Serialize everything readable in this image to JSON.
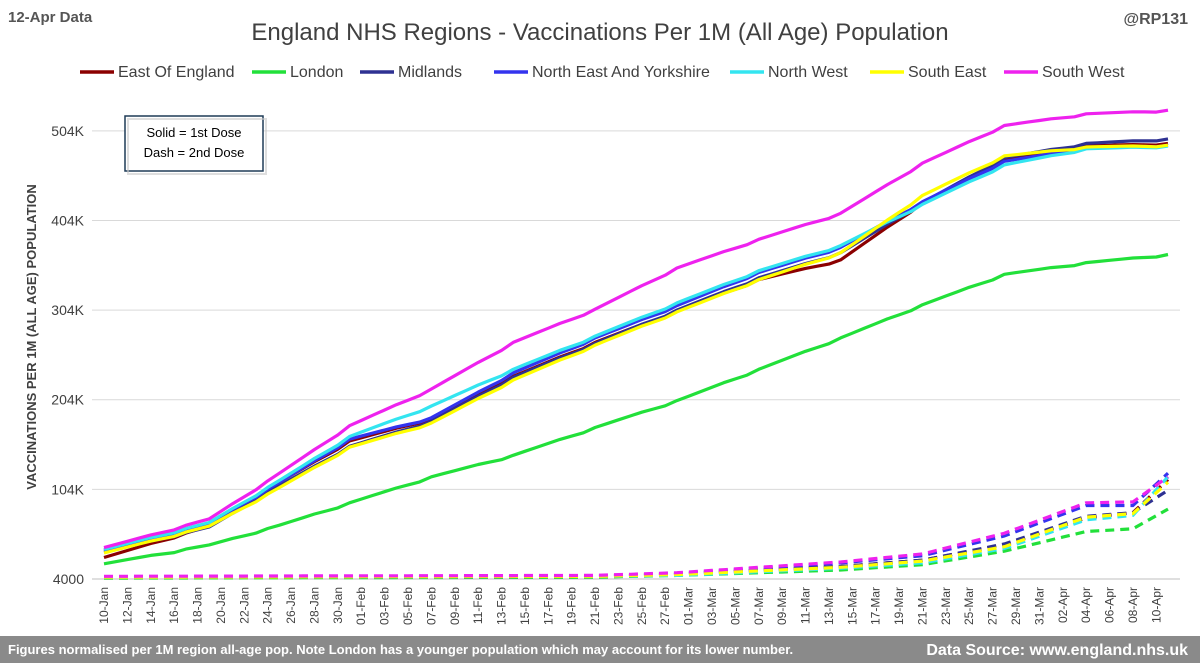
{
  "corner_label": "12-Apr Data",
  "handle": "@RP131",
  "chart_data": {
    "type": "line",
    "title": "England NHS Regions - Vaccinations Per 1M (All Age) Population",
    "ylabel": "VACCINATIONS PER 1M (ALL AGE) POPULATION",
    "xlabel": "",
    "ylim": [
      4000,
      544000
    ],
    "yticks": [
      4000,
      104000,
      204000,
      304000,
      404000,
      504000
    ],
    "ytick_labels": [
      "4000",
      "104K",
      "204K",
      "304K",
      "404K",
      "504K"
    ],
    "x_start": "10-Jan",
    "x_count": 92,
    "xtick_labels": [
      "10-Jan",
      "12-Jan",
      "14-Jan",
      "16-Jan",
      "18-Jan",
      "20-Jan",
      "22-Jan",
      "24-Jan",
      "26-Jan",
      "28-Jan",
      "30-Jan",
      "01-Feb",
      "03-Feb",
      "05-Feb",
      "07-Feb",
      "09-Feb",
      "11-Feb",
      "13-Feb",
      "15-Feb",
      "17-Feb",
      "19-Feb",
      "21-Feb",
      "23-Feb",
      "25-Feb",
      "27-Feb",
      "01-Mar",
      "03-Mar",
      "05-Mar",
      "07-Mar",
      "09-Mar",
      "11-Mar",
      "13-Mar",
      "15-Mar",
      "17-Mar",
      "19-Mar",
      "21-Mar",
      "23-Mar",
      "25-Mar",
      "27-Mar",
      "29-Mar",
      "31-Mar",
      "02-Apr",
      "04-Apr",
      "06-Apr",
      "08-Apr",
      "10-Apr"
    ],
    "legend_position": "top",
    "series": [
      {
        "name": "East Of England",
        "color": "#8B0000",
        "dose1": [
          [
            0,
            28000
          ],
          [
            9,
            63000
          ],
          [
            15,
            112000
          ],
          [
            21,
            158000
          ],
          [
            28,
            183000
          ],
          [
            35,
            230000
          ],
          [
            42,
            268000
          ],
          [
            49,
            303000
          ],
          [
            56,
            338000
          ],
          [
            63,
            360000
          ],
          [
            70,
            424000
          ],
          [
            77,
            472000
          ],
          [
            84,
            487000
          ],
          [
            91,
            490000
          ]
        ],
        "dose2": [
          [
            0,
            6000
          ],
          [
            42,
            7000
          ],
          [
            49,
            9000
          ],
          [
            56,
            14000
          ],
          [
            63,
            18000
          ],
          [
            70,
            25000
          ],
          [
            77,
            42000
          ],
          [
            84,
            72000
          ],
          [
            88,
            78000
          ],
          [
            91,
            115000
          ]
        ]
      },
      {
        "name": "London",
        "color": "#22E03A",
        "dose1": [
          [
            0,
            21000
          ],
          [
            9,
            42000
          ],
          [
            15,
            64000
          ],
          [
            21,
            89000
          ],
          [
            28,
            118000
          ],
          [
            35,
            142000
          ],
          [
            42,
            173000
          ],
          [
            49,
            203000
          ],
          [
            56,
            238000
          ],
          [
            63,
            273000
          ],
          [
            70,
            310000
          ],
          [
            77,
            344000
          ],
          [
            84,
            357000
          ],
          [
            91,
            366000
          ]
        ],
        "dose2": [
          [
            0,
            5000
          ],
          [
            42,
            6000
          ],
          [
            49,
            8000
          ],
          [
            56,
            11000
          ],
          [
            63,
            14000
          ],
          [
            70,
            20000
          ],
          [
            77,
            35000
          ],
          [
            84,
            57000
          ],
          [
            88,
            60000
          ],
          [
            91,
            82000
          ]
        ]
      },
      {
        "name": "Midlands",
        "color": "#2E3192",
        "dose1": [
          [
            0,
            34000
          ],
          [
            9,
            62000
          ],
          [
            15,
            108000
          ],
          [
            21,
            152000
          ],
          [
            28,
            180000
          ],
          [
            35,
            229000
          ],
          [
            42,
            267000
          ],
          [
            49,
            304000
          ],
          [
            56,
            340000
          ],
          [
            63,
            368000
          ],
          [
            70,
            424000
          ],
          [
            77,
            474000
          ],
          [
            84,
            490000
          ],
          [
            91,
            495000
          ]
        ],
        "dose2": [
          [
            0,
            6000
          ],
          [
            42,
            7000
          ],
          [
            49,
            9000
          ],
          [
            56,
            14000
          ],
          [
            63,
            18000
          ],
          [
            70,
            25000
          ],
          [
            77,
            43000
          ],
          [
            84,
            74000
          ],
          [
            88,
            78000
          ],
          [
            91,
            103000
          ]
        ]
      },
      {
        "name": "North East And Yorkshire",
        "color": "#3333EE",
        "dose1": [
          [
            0,
            36000
          ],
          [
            9,
            66000
          ],
          [
            15,
            112000
          ],
          [
            21,
            160000
          ],
          [
            28,
            184000
          ],
          [
            35,
            234000
          ],
          [
            42,
            273000
          ],
          [
            49,
            309000
          ],
          [
            56,
            346000
          ],
          [
            63,
            374000
          ],
          [
            70,
            425000
          ],
          [
            77,
            470000
          ],
          [
            84,
            485000
          ],
          [
            91,
            488000
          ]
        ],
        "dose2": [
          [
            0,
            6000
          ],
          [
            42,
            7000
          ],
          [
            49,
            10000
          ],
          [
            56,
            16000
          ],
          [
            63,
            22000
          ],
          [
            70,
            30000
          ],
          [
            77,
            52000
          ],
          [
            84,
            86000
          ],
          [
            88,
            86000
          ],
          [
            91,
            122000
          ]
        ]
      },
      {
        "name": "North West",
        "color": "#33E5F0",
        "dose1": [
          [
            0,
            37000
          ],
          [
            9,
            67000
          ],
          [
            15,
            114000
          ],
          [
            21,
            163000
          ],
          [
            28,
            197000
          ],
          [
            35,
            238000
          ],
          [
            42,
            275000
          ],
          [
            49,
            312000
          ],
          [
            56,
            348000
          ],
          [
            63,
            376000
          ],
          [
            70,
            422000
          ],
          [
            77,
            466000
          ],
          [
            84,
            484000
          ],
          [
            91,
            487000
          ]
        ],
        "dose2": [
          [
            0,
            6000
          ],
          [
            42,
            7000
          ],
          [
            49,
            8000
          ],
          [
            56,
            12000
          ],
          [
            63,
            16000
          ],
          [
            70,
            22000
          ],
          [
            77,
            38000
          ],
          [
            84,
            70000
          ],
          [
            88,
            75000
          ],
          [
            91,
            118000
          ]
        ]
      },
      {
        "name": "South East",
        "color": "#FFFF00",
        "dose1": [
          [
            0,
            33000
          ],
          [
            9,
            63000
          ],
          [
            15,
            106000
          ],
          [
            21,
            151000
          ],
          [
            28,
            178000
          ],
          [
            35,
            226000
          ],
          [
            42,
            265000
          ],
          [
            49,
            302000
          ],
          [
            56,
            338000
          ],
          [
            63,
            368000
          ],
          [
            70,
            432000
          ],
          [
            77,
            476000
          ],
          [
            84,
            486000
          ],
          [
            91,
            488000
          ]
        ],
        "dose2": [
          [
            0,
            6000
          ],
          [
            42,
            7000
          ],
          [
            49,
            9000
          ],
          [
            56,
            13000
          ],
          [
            63,
            17000
          ],
          [
            70,
            24000
          ],
          [
            77,
            40000
          ],
          [
            84,
            73000
          ],
          [
            88,
            77000
          ],
          [
            91,
            112000
          ]
        ]
      },
      {
        "name": "South West",
        "color": "#EE22EE",
        "dose1": [
          [
            0,
            39000
          ],
          [
            9,
            71000
          ],
          [
            15,
            122000
          ],
          [
            21,
            175000
          ],
          [
            28,
            216000
          ],
          [
            35,
            268000
          ],
          [
            42,
            305000
          ],
          [
            49,
            351000
          ],
          [
            56,
            383000
          ],
          [
            63,
            412000
          ],
          [
            70,
            468000
          ],
          [
            77,
            510000
          ],
          [
            84,
            523000
          ],
          [
            91,
            527000
          ]
        ],
        "dose2": [
          [
            0,
            7000
          ],
          [
            42,
            8000
          ],
          [
            49,
            11000
          ],
          [
            56,
            17000
          ],
          [
            63,
            23000
          ],
          [
            70,
            32000
          ],
          [
            77,
            55000
          ],
          [
            84,
            89000
          ],
          [
            88,
            90000
          ],
          [
            91,
            118000
          ]
        ]
      }
    ]
  },
  "note": {
    "line1": "Solid = 1st Dose",
    "line2": "Dash = 2nd Dose"
  },
  "footer": {
    "left": "Figures normalised per 1M region all-age pop. Note London has a younger population which may account for its lower number.",
    "right": "Data Source: www.england.nhs.uk"
  }
}
